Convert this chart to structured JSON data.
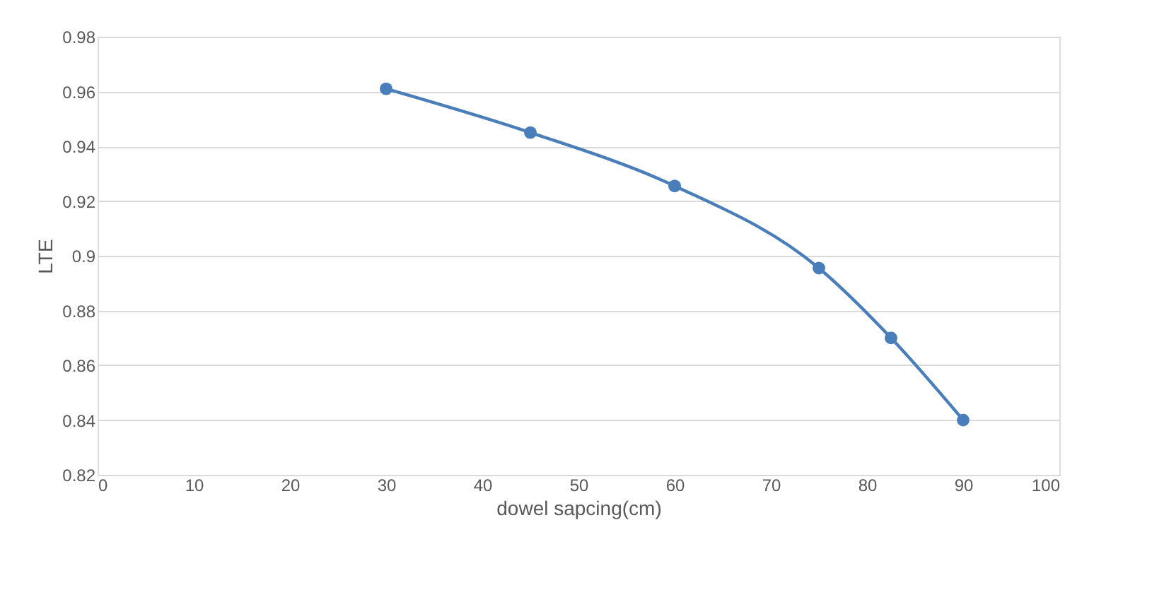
{
  "chart_data": {
    "type": "line",
    "xlabel": "dowel sapcing(cm)",
    "ylabel": "LTE",
    "x": [
      30,
      45,
      60,
      75,
      82.5,
      90
    ],
    "series": [
      {
        "color": "#4a7ebb",
        "values": [
          0.961,
          0.945,
          0.9255,
          0.8955,
          0.87,
          0.84
        ]
      }
    ],
    "xlim": [
      0,
      100
    ],
    "xticks": [
      0,
      10,
      20,
      30,
      40,
      50,
      60,
      70,
      80,
      90,
      100
    ],
    "ylim": [
      0.82,
      0.98
    ],
    "yticks": [
      0.82,
      0.84,
      0.86,
      0.88,
      0.9,
      0.92,
      0.94,
      0.96,
      0.98
    ],
    "grid": "y",
    "marker": "circle",
    "line_style": "solid",
    "legend": false
  }
}
